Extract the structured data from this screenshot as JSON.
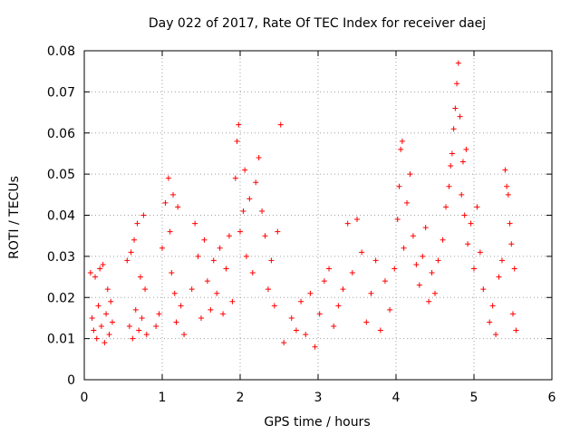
{
  "chart_data": {
    "type": "scatter",
    "title": "Day 022 of 2017, Rate Of TEC Index for receiver daej",
    "xlabel": "GPS time / hours",
    "ylabel": "ROTI / TECUs",
    "xlim": [
      0,
      6
    ],
    "ylim": [
      0,
      0.08
    ],
    "xticks": [
      0,
      1,
      2,
      3,
      4,
      5,
      6
    ],
    "xtick_labels": [
      "0",
      "1",
      "2",
      "3",
      "4",
      "5",
      "6"
    ],
    "yticks": [
      0,
      0.01,
      0.02,
      0.03,
      0.04,
      0.05,
      0.06,
      0.07,
      0.08
    ],
    "ytick_labels": [
      "0",
      "0.01",
      "0.02",
      "0.03",
      "0.04",
      "0.05",
      "0.06",
      "0.07",
      "0.08"
    ],
    "grid": true,
    "marker": "+",
    "marker_color": "#ff0000",
    "series": [
      {
        "name": "ROTI",
        "points": [
          [
            0.08,
            0.026
          ],
          [
            0.1,
            0.015
          ],
          [
            0.12,
            0.012
          ],
          [
            0.14,
            0.025
          ],
          [
            0.16,
            0.01
          ],
          [
            0.18,
            0.018
          ],
          [
            0.2,
            0.027
          ],
          [
            0.22,
            0.013
          ],
          [
            0.24,
            0.028
          ],
          [
            0.26,
            0.009
          ],
          [
            0.28,
            0.016
          ],
          [
            0.3,
            0.022
          ],
          [
            0.32,
            0.011
          ],
          [
            0.34,
            0.019
          ],
          [
            0.36,
            0.014
          ],
          [
            0.55,
            0.029
          ],
          [
            0.58,
            0.013
          ],
          [
            0.6,
            0.031
          ],
          [
            0.62,
            0.01
          ],
          [
            0.64,
            0.034
          ],
          [
            0.66,
            0.017
          ],
          [
            0.68,
            0.038
          ],
          [
            0.7,
            0.012
          ],
          [
            0.72,
            0.025
          ],
          [
            0.74,
            0.015
          ],
          [
            0.76,
            0.04
          ],
          [
            0.78,
            0.022
          ],
          [
            0.8,
            0.011
          ],
          [
            0.92,
            0.013
          ],
          [
            0.96,
            0.016
          ],
          [
            1.0,
            0.032
          ],
          [
            1.04,
            0.043
          ],
          [
            1.08,
            0.049
          ],
          [
            1.1,
            0.036
          ],
          [
            1.12,
            0.026
          ],
          [
            1.14,
            0.045
          ],
          [
            1.16,
            0.021
          ],
          [
            1.18,
            0.014
          ],
          [
            1.2,
            0.042
          ],
          [
            1.24,
            0.018
          ],
          [
            1.28,
            0.011
          ],
          [
            1.38,
            0.022
          ],
          [
            1.42,
            0.038
          ],
          [
            1.46,
            0.03
          ],
          [
            1.5,
            0.015
          ],
          [
            1.54,
            0.034
          ],
          [
            1.58,
            0.024
          ],
          [
            1.62,
            0.017
          ],
          [
            1.66,
            0.029
          ],
          [
            1.7,
            0.021
          ],
          [
            1.74,
            0.032
          ],
          [
            1.78,
            0.016
          ],
          [
            1.82,
            0.027
          ],
          [
            1.86,
            0.035
          ],
          [
            1.9,
            0.019
          ],
          [
            1.94,
            0.049
          ],
          [
            1.96,
            0.058
          ],
          [
            1.98,
            0.062
          ],
          [
            2.0,
            0.036
          ],
          [
            2.04,
            0.041
          ],
          [
            2.06,
            0.051
          ],
          [
            2.08,
            0.03
          ],
          [
            2.12,
            0.044
          ],
          [
            2.16,
            0.026
          ],
          [
            2.2,
            0.048
          ],
          [
            2.24,
            0.054
          ],
          [
            2.28,
            0.041
          ],
          [
            2.32,
            0.035
          ],
          [
            2.36,
            0.022
          ],
          [
            2.4,
            0.029
          ],
          [
            2.44,
            0.018
          ],
          [
            2.48,
            0.036
          ],
          [
            2.52,
            0.062
          ],
          [
            2.56,
            0.009
          ],
          [
            2.66,
            0.015
          ],
          [
            2.72,
            0.012
          ],
          [
            2.78,
            0.019
          ],
          [
            2.84,
            0.011
          ],
          [
            2.9,
            0.021
          ],
          [
            2.96,
            0.008
          ],
          [
            3.02,
            0.016
          ],
          [
            3.08,
            0.024
          ],
          [
            3.14,
            0.027
          ],
          [
            3.2,
            0.013
          ],
          [
            3.26,
            0.018
          ],
          [
            3.32,
            0.022
          ],
          [
            3.38,
            0.038
          ],
          [
            3.44,
            0.026
          ],
          [
            3.5,
            0.039
          ],
          [
            3.56,
            0.031
          ],
          [
            3.62,
            0.014
          ],
          [
            3.68,
            0.021
          ],
          [
            3.74,
            0.029
          ],
          [
            3.8,
            0.012
          ],
          [
            3.86,
            0.024
          ],
          [
            3.92,
            0.017
          ],
          [
            3.98,
            0.027
          ],
          [
            4.02,
            0.039
          ],
          [
            4.04,
            0.047
          ],
          [
            4.06,
            0.056
          ],
          [
            4.08,
            0.058
          ],
          [
            4.1,
            0.032
          ],
          [
            4.14,
            0.043
          ],
          [
            4.18,
            0.05
          ],
          [
            4.22,
            0.035
          ],
          [
            4.26,
            0.028
          ],
          [
            4.3,
            0.023
          ],
          [
            4.34,
            0.03
          ],
          [
            4.38,
            0.037
          ],
          [
            4.42,
            0.019
          ],
          [
            4.46,
            0.026
          ],
          [
            4.5,
            0.021
          ],
          [
            4.54,
            0.029
          ],
          [
            4.6,
            0.034
          ],
          [
            4.64,
            0.042
          ],
          [
            4.68,
            0.047
          ],
          [
            4.7,
            0.052
          ],
          [
            4.72,
            0.055
          ],
          [
            4.74,
            0.061
          ],
          [
            4.76,
            0.066
          ],
          [
            4.78,
            0.072
          ],
          [
            4.8,
            0.077
          ],
          [
            4.82,
            0.064
          ],
          [
            4.84,
            0.045
          ],
          [
            4.86,
            0.053
          ],
          [
            4.88,
            0.04
          ],
          [
            4.9,
            0.056
          ],
          [
            4.92,
            0.033
          ],
          [
            4.96,
            0.038
          ],
          [
            5.0,
            0.027
          ],
          [
            5.04,
            0.042
          ],
          [
            5.08,
            0.031
          ],
          [
            5.12,
            0.022
          ],
          [
            5.2,
            0.014
          ],
          [
            5.24,
            0.018
          ],
          [
            5.28,
            0.011
          ],
          [
            5.32,
            0.025
          ],
          [
            5.36,
            0.029
          ],
          [
            5.4,
            0.051
          ],
          [
            5.42,
            0.047
          ],
          [
            5.44,
            0.045
          ],
          [
            5.46,
            0.038
          ],
          [
            5.48,
            0.033
          ],
          [
            5.5,
            0.016
          ],
          [
            5.52,
            0.027
          ],
          [
            5.54,
            0.012
          ]
        ]
      }
    ]
  }
}
